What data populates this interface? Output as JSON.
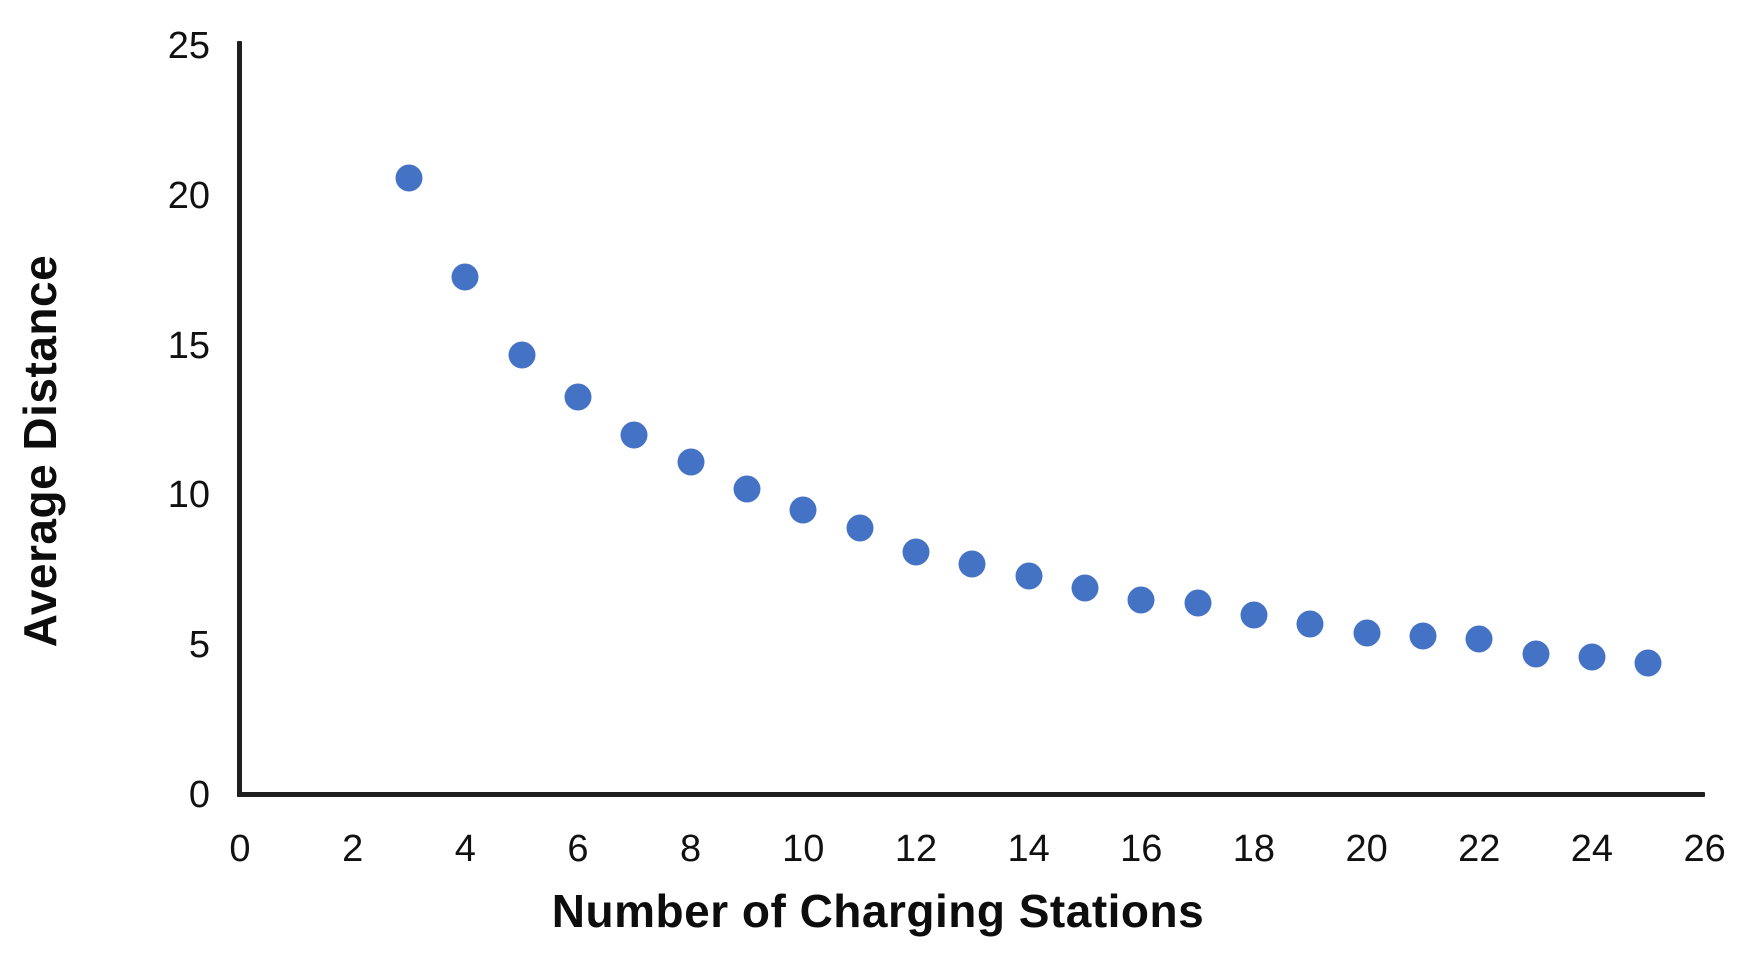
{
  "chart_data": {
    "type": "scatter",
    "title": "",
    "xlabel": "Number of Charging Stations",
    "ylabel": "Average Distance",
    "points": [
      [
        3,
        20.6
      ],
      [
        4,
        17.3
      ],
      [
        5,
        14.7
      ],
      [
        6,
        13.3
      ],
      [
        7,
        12.0
      ],
      [
        8,
        11.1
      ],
      [
        9,
        10.2
      ],
      [
        10,
        9.5
      ],
      [
        11,
        8.9
      ],
      [
        12,
        8.1
      ],
      [
        13,
        7.7
      ],
      [
        14,
        7.3
      ],
      [
        15,
        6.9
      ],
      [
        16,
        6.5
      ],
      [
        17,
        6.4
      ],
      [
        18,
        6.0
      ],
      [
        19,
        5.7
      ],
      [
        20,
        5.4
      ],
      [
        21,
        5.3
      ],
      [
        22,
        5.2
      ],
      [
        23,
        4.7
      ],
      [
        24,
        4.6
      ],
      [
        25,
        4.4
      ]
    ],
    "x_ticks": [
      0,
      2,
      4,
      6,
      8,
      10,
      12,
      14,
      16,
      18,
      20,
      22,
      24,
      26
    ],
    "y_ticks": [
      0,
      5,
      10,
      15,
      20,
      25
    ],
    "xlim": [
      0,
      26
    ],
    "ylim": [
      0,
      25
    ],
    "grid": false,
    "legend": false,
    "marker_color": "#4472C4",
    "axis_color": "#1f1f1f",
    "text_color": "#111111",
    "background_color": "#ffffff"
  }
}
